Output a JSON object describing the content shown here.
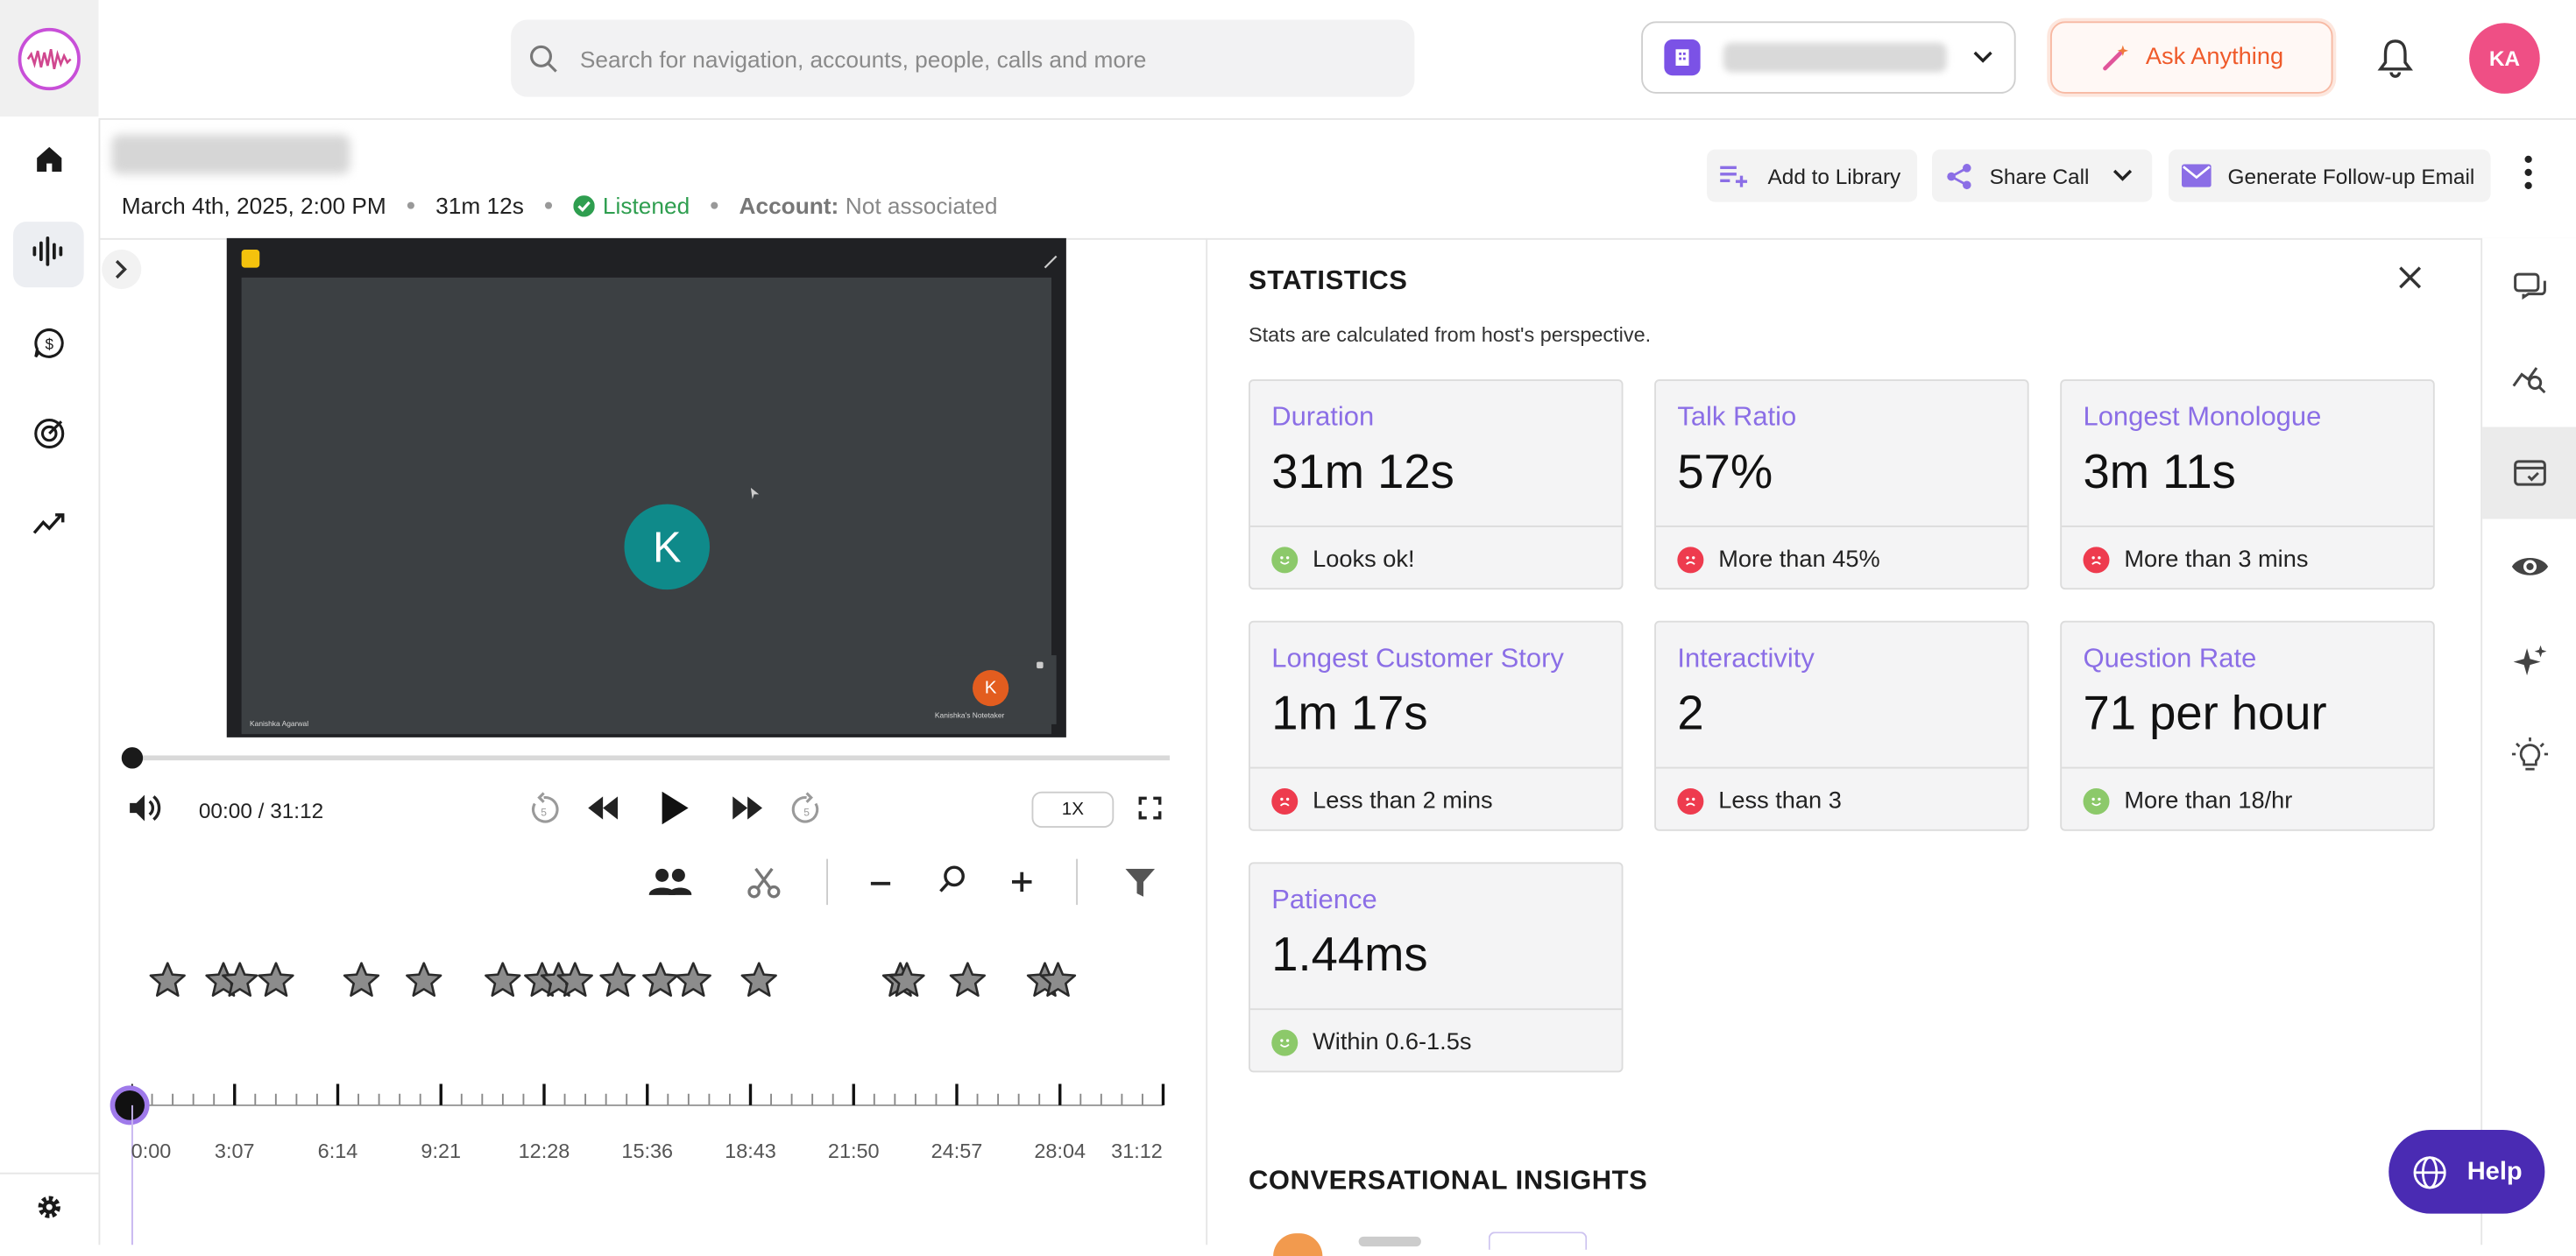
{
  "search": {
    "placeholder": "Search for navigation, accounts, people, calls and more"
  },
  "topbar": {
    "ask_label": "Ask Anything",
    "avatar_initials": "KA"
  },
  "call": {
    "date": "March 4th, 2025, 2:00 PM",
    "duration": "31m 12s",
    "status": "Listened",
    "account_label": "Account:",
    "account_value": "Not associated"
  },
  "actions": {
    "add_library": "Add to Library",
    "share_call": "Share Call",
    "followup": "Generate Follow-up Email"
  },
  "video": {
    "main_initial": "K",
    "thumb_initial": "K",
    "main_name": "Kanishka Agarwal",
    "thumb_name": "Kanishka's Notetaker"
  },
  "player": {
    "time": "00:00 / 31:12",
    "speed": "1X",
    "progress": 0
  },
  "timeline": {
    "labels": [
      "0:00",
      "3:07",
      "6:14",
      "9:21",
      "12:28",
      "15:36",
      "18:43",
      "21:50",
      "24:57",
      "28:04",
      "31:12"
    ]
  },
  "stats": {
    "title": "STATISTICS",
    "subtitle": "Stats are calculated from host's perspective.",
    "cards": [
      {
        "label": "Duration",
        "value": "31m 12s",
        "note": "Looks ok!",
        "status": "good"
      },
      {
        "label": "Talk Ratio",
        "value": "57%",
        "note": "More than 45%",
        "status": "bad"
      },
      {
        "label": "Longest Monologue",
        "value": "3m 11s",
        "note": "More than 3 mins",
        "status": "bad"
      },
      {
        "label": "Longest Customer Story",
        "value": "1m 17s",
        "note": "Less than 2 mins",
        "status": "bad"
      },
      {
        "label": "Interactivity",
        "value": "2",
        "note": "Less than 3",
        "status": "bad"
      },
      {
        "label": "Question Rate",
        "value": "71 per hour",
        "note": "More than 18/hr",
        "status": "good"
      },
      {
        "label": "Patience",
        "value": "1.44ms",
        "note": "Within 0.6-1.5s",
        "status": "good"
      }
    ],
    "insights_title": "CONVERSATIONAL INSIGHTS"
  },
  "help": {
    "label": "Help"
  },
  "colors": {
    "accent": "#8b6ee6",
    "good": "#8cc96a",
    "bad": "#ee3b4e",
    "help_bg": "#4a2bb3",
    "ask": "#ef5a2a"
  }
}
